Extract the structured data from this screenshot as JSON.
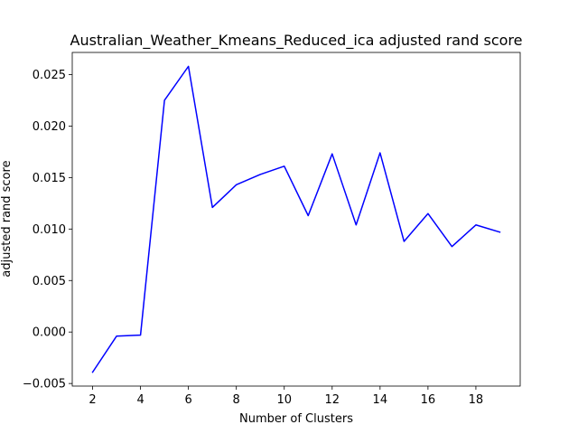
{
  "chart_data": {
    "type": "line",
    "title": "Australian_Weather_Kmeans_Reduced_ica adjusted rand score",
    "xlabel": "Number of Clusters",
    "ylabel": "adjusted rand score",
    "xlim": [
      1.15,
      19.85
    ],
    "ylim": [
      -0.00525,
      0.02715
    ],
    "xticks": [
      2,
      4,
      6,
      8,
      10,
      12,
      14,
      16,
      18
    ],
    "xtick_labels": [
      "2",
      "4",
      "6",
      "8",
      "10",
      "12",
      "14",
      "16",
      "18"
    ],
    "yticks": [
      -0.005,
      0,
      0.005,
      0.01,
      0.015,
      0.02,
      0.025
    ],
    "ytick_labels": [
      "−0.005",
      "0.000",
      "0.005",
      "0.010",
      "0.015",
      "0.020",
      "0.025"
    ],
    "grid": false,
    "series": [
      {
        "color": "#0000ff",
        "x": [
          2,
          3,
          4,
          5,
          6,
          7,
          8,
          9,
          10,
          11,
          12,
          13,
          14,
          15,
          16,
          17,
          18,
          19
        ],
        "y": [
          -0.0039,
          -0.0004,
          -0.0003,
          0.0225,
          0.0258,
          0.0121,
          0.0143,
          0.0153,
          0.0161,
          0.0113,
          0.0173,
          0.0104,
          0.0174,
          0.0088,
          0.0115,
          0.0083,
          0.0104,
          0.0097
        ]
      }
    ]
  }
}
